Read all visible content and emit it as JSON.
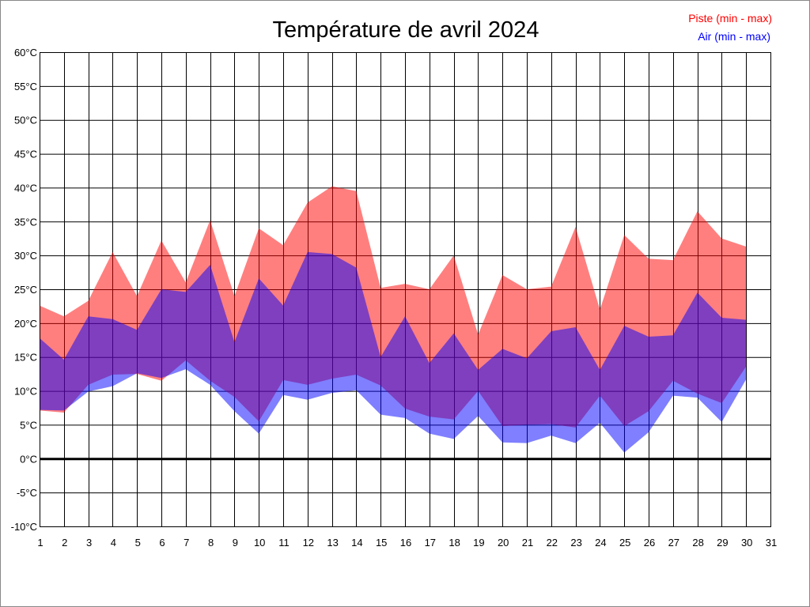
{
  "chart_data": {
    "type": "area",
    "title": "Température de avril 2024",
    "xlabel": "",
    "ylabel": "",
    "x": [
      1,
      2,
      3,
      4,
      5,
      6,
      7,
      8,
      9,
      10,
      11,
      12,
      13,
      14,
      15,
      16,
      17,
      18,
      19,
      20,
      21,
      22,
      23,
      24,
      25,
      26,
      27,
      28,
      29,
      30
    ],
    "x_ticks": [
      "1",
      "2",
      "3",
      "4",
      "5",
      "6",
      "7",
      "8",
      "9",
      "10",
      "11",
      "12",
      "13",
      "14",
      "15",
      "16",
      "17",
      "18",
      "19",
      "20",
      "21",
      "22",
      "23",
      "24",
      "25",
      "26",
      "27",
      "28",
      "29",
      "30",
      "31"
    ],
    "xlim": [
      1,
      31
    ],
    "ylim": [
      -10,
      60
    ],
    "y_ticks": [
      "-10°C",
      "-5°C",
      "0°C",
      "5°C",
      "10°C",
      "15°C",
      "20°C",
      "25°C",
      "30°C",
      "35°C",
      "40°C",
      "45°C",
      "50°C",
      "55°C",
      "60°C"
    ],
    "grid": true,
    "legend_placement": "top-right",
    "series": [
      {
        "name": "Piste (min - max)",
        "color": "#ff0000",
        "fill": "#ff8080",
        "min": [
          7.1,
          6.8,
          10.9,
          12.4,
          12.5,
          11.5,
          14.5,
          11.5,
          9.1,
          5.5,
          11.6,
          10.9,
          11.8,
          12.4,
          10.8,
          7.4,
          6.2,
          5.8,
          10.0,
          4.8,
          5.0,
          5.1,
          4.6,
          9.3,
          4.8,
          7.0,
          11.5,
          9.6,
          8.2,
          13.6
        ],
        "max": [
          22.6,
          21.0,
          23.3,
          30.5,
          24.0,
          32.2,
          26.0,
          35.2,
          24.0,
          34.0,
          31.5,
          37.8,
          40.2,
          39.5,
          25.2,
          25.8,
          25.0,
          30.0,
          18.3,
          27.1,
          25.0,
          25.4,
          34.2,
          22.0,
          33.0,
          29.5,
          29.3,
          36.5,
          32.5,
          31.3
        ]
      },
      {
        "name": "Air (min - max)",
        "color": "#0000ff",
        "fill": "#8080ff",
        "min": [
          7.2,
          7.1,
          9.9,
          10.7,
          12.6,
          11.9,
          13.2,
          10.9,
          7.0,
          3.7,
          9.4,
          8.7,
          9.7,
          10.1,
          6.5,
          6.0,
          3.7,
          2.9,
          6.3,
          2.4,
          2.3,
          3.4,
          2.3,
          5.3,
          0.9,
          3.9,
          9.3,
          9.0,
          5.4,
          11.7
        ],
        "max": [
          17.8,
          14.6,
          21.0,
          20.6,
          19.0,
          25.0,
          24.6,
          28.6,
          17.2,
          26.6,
          22.6,
          30.5,
          30.2,
          28.2,
          15.0,
          21.0,
          14.1,
          18.5,
          13.1,
          16.2,
          14.8,
          18.8,
          19.4,
          13.1,
          19.6,
          18.0,
          18.2,
          24.5,
          20.8,
          20.5
        ]
      }
    ]
  }
}
